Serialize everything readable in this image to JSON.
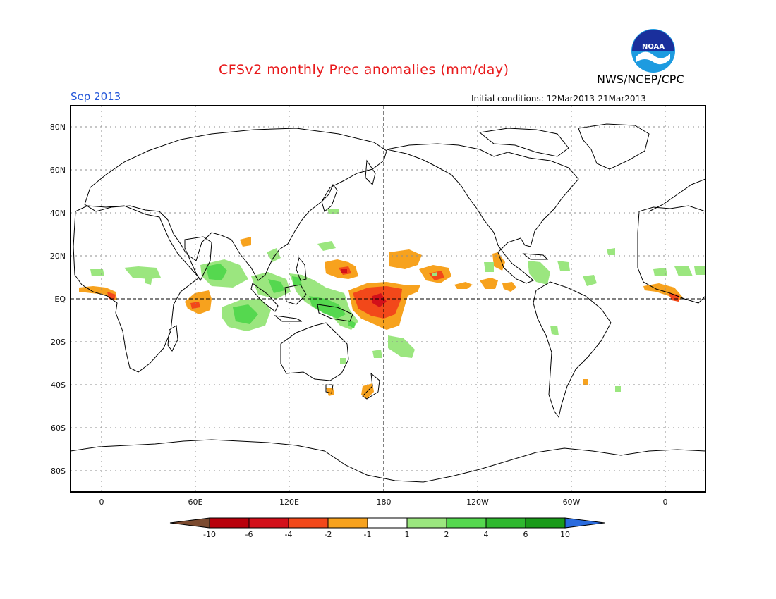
{
  "header": {
    "title": "CFSv2 monthly Prec anomalies (mm/day)",
    "month": "Sep 2013",
    "initial_conditions": "Initial conditions: 12Mar2013-21Mar2013",
    "agency": "NWS/NCEP/CPC",
    "logo_text": "NOAA"
  },
  "map": {
    "lat_labels": [
      "80N",
      "60N",
      "40N",
      "20N",
      "EQ",
      "20S",
      "40S",
      "60S",
      "80S"
    ],
    "lon_labels": [
      "0",
      "60E",
      "120E",
      "180",
      "120W",
      "60W",
      "0"
    ]
  },
  "legend": {
    "tick_labels": [
      "-10",
      "-6",
      "-4",
      "-2",
      "-1",
      "1",
      "2",
      "4",
      "6",
      "10"
    ],
    "colors": [
      "#7b4a2f",
      "#b8000b",
      "#d3101a",
      "#f2481a",
      "#f7a21e",
      "#ffffff",
      "#9be67f",
      "#55d84f",
      "#2fb82f",
      "#1a9b1a",
      "#2a6bde"
    ]
  },
  "colors": {
    "title": "#e8191b",
    "month": "#2457d9",
    "orange": "#f7a21e",
    "red_orange": "#f2481a",
    "dark_red": "#d3101a",
    "light_green": "#9be67f",
    "green": "#55d84f"
  }
}
